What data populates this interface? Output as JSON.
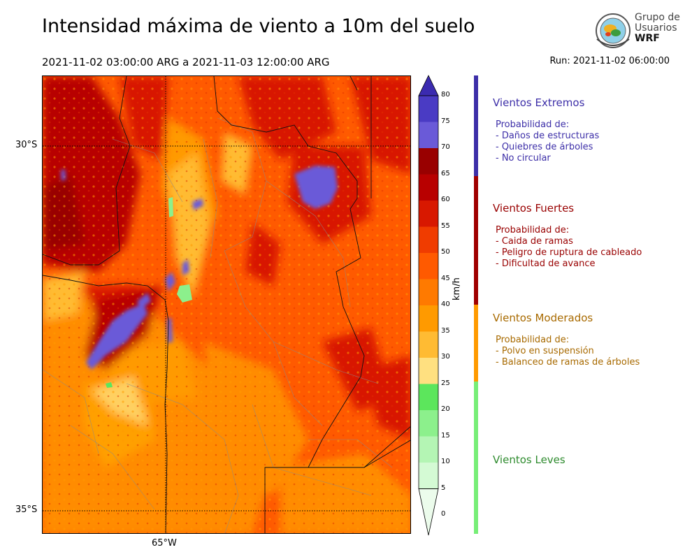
{
  "header": {
    "title": "Intensidad máxima de viento a 10m del suelo",
    "period": "2021-11-02 03:00:00 ARG  a  2021-11-03 12:00:00 ARG",
    "run": "Run: 2021-11-02 06:00:00"
  },
  "logo": {
    "line1": "Grupo de",
    "line2": "Usuarios",
    "line3": "WRF",
    "icon": "wrf-globe-logo"
  },
  "map": {
    "lat_labels": [
      "30°S",
      "35°S"
    ],
    "lon_labels": [
      "65°W"
    ]
  },
  "colorbar": {
    "unit": "km/h",
    "ticks": [
      "80",
      "75",
      "70",
      "65",
      "60",
      "55",
      "50",
      "45",
      "40",
      "35",
      "30",
      "25",
      "20",
      "15",
      "10",
      "5",
      "0"
    ],
    "colors": [
      "#3b2bb0",
      "#4a3bc4",
      "#6a5ad8",
      "#990000",
      "#b80000",
      "#d81800",
      "#f03c00",
      "#ff5a00",
      "#ff7a00",
      "#ff9a00",
      "#ffbb33",
      "#ffe080",
      "#5ce65c",
      "#8cf08c",
      "#b4f5b4",
      "#d4fad4",
      "#ecfcec"
    ]
  },
  "categories": [
    {
      "title": "Vientos Extremos",
      "color": "#3d2fa8",
      "bar_color": "#3d2fa8",
      "lines": [
        "Probabilidad de:",
        "- Daños de estructuras",
        "- Quiebres de árboles",
        "- No circular"
      ]
    },
    {
      "title": "Vientos Fuertes",
      "color": "#990000",
      "bar_color": "#a00000",
      "lines": [
        "Probabilidad de:",
        "- Caida de ramas",
        "- Peligro de ruptura de cableado",
        "- Dificultad de avance"
      ]
    },
    {
      "title": "Vientos Moderados",
      "color": "#a86a00",
      "bar_color": "#ff9a00",
      "lines": [
        "Probabilidad de:",
        "- Polvo en suspensión",
        "- Balanceo de ramas de árboles"
      ]
    },
    {
      "title": "Vientos Leves",
      "color": "#2e8b2e",
      "bar_color": "#77ee77",
      "lines": []
    }
  ]
}
